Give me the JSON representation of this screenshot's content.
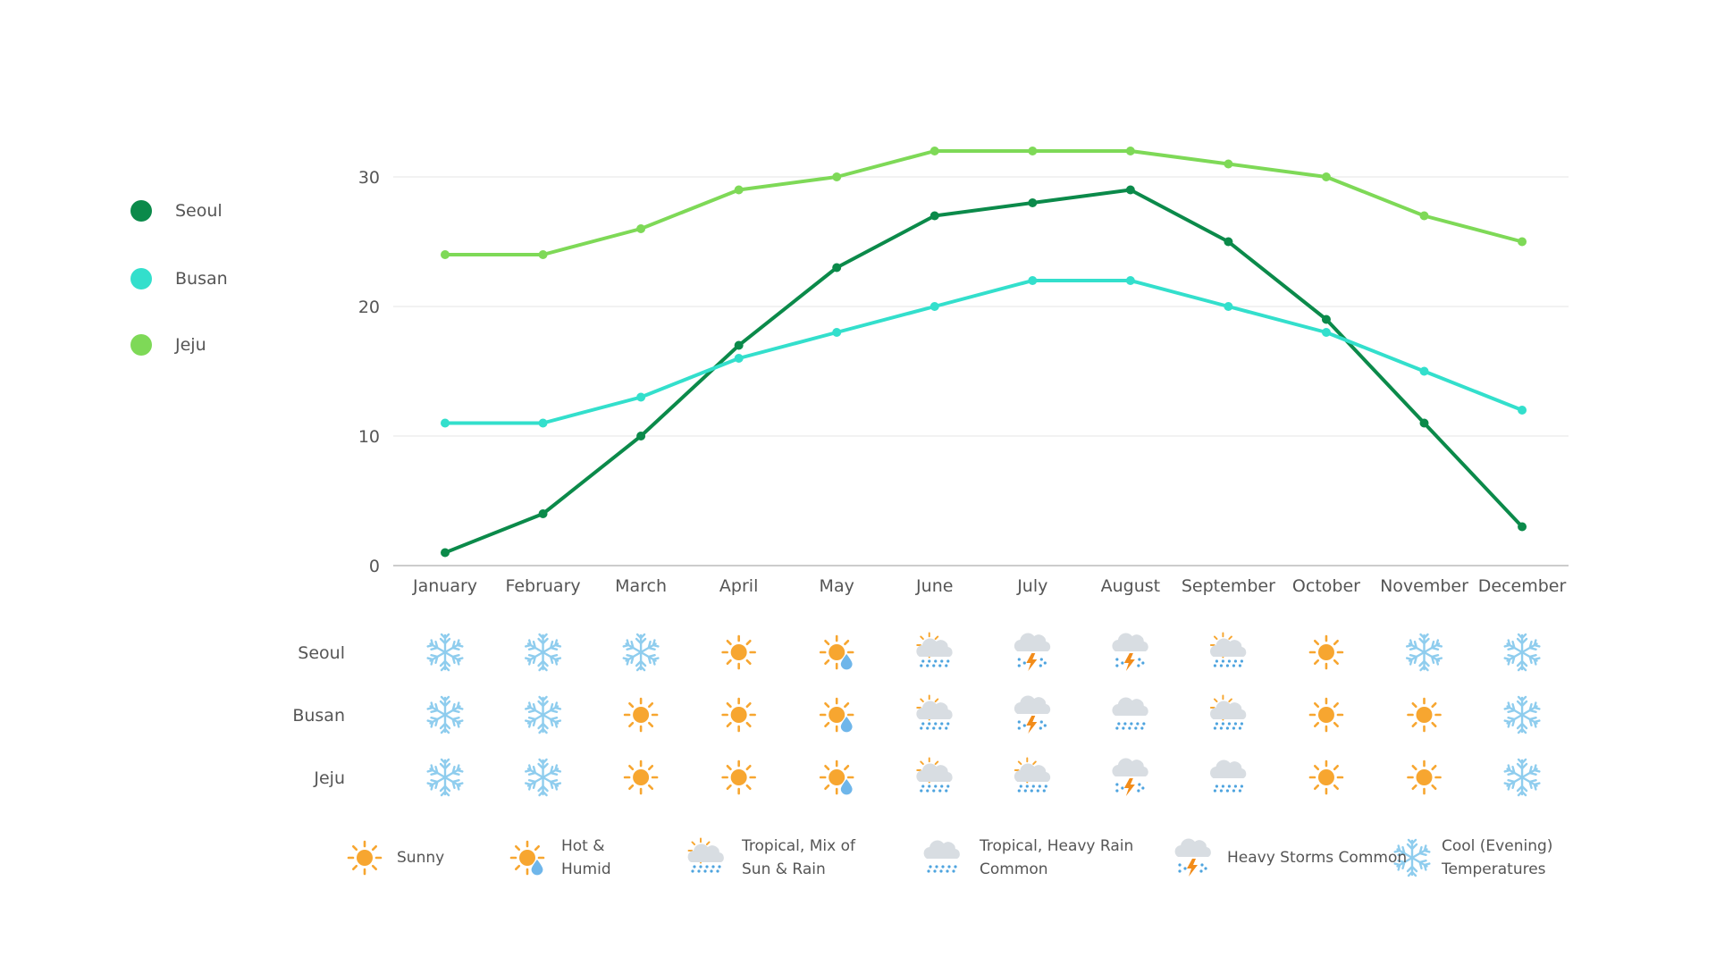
{
  "chart_data": {
    "type": "line",
    "categories": [
      "January",
      "February",
      "March",
      "April",
      "May",
      "June",
      "July",
      "August",
      "September",
      "October",
      "November",
      "December"
    ],
    "series": [
      {
        "name": "Seoul",
        "color": "#0b8a4a",
        "values": [
          1,
          4,
          10,
          17,
          23,
          27,
          28,
          29,
          25,
          19,
          11,
          3
        ]
      },
      {
        "name": "Busan",
        "color": "#33dfcc",
        "values": [
          11,
          11,
          13,
          16,
          18,
          20,
          22,
          22,
          20,
          18,
          15,
          12
        ]
      },
      {
        "name": "Jeju",
        "color": "#7ed957",
        "values": [
          24,
          24,
          26,
          29,
          30,
          32,
          32,
          32,
          31,
          30,
          27,
          25
        ]
      }
    ],
    "ylim": [
      0,
      30
    ],
    "yticks": [
      0,
      10,
      20,
      30
    ],
    "grid": true,
    "legend_position": "left"
  },
  "weather": {
    "rows": [
      {
        "city": "Seoul",
        "icons": [
          "snowflake",
          "snowflake",
          "snowflake",
          "sun",
          "sun-drop",
          "sun-cloud-rain",
          "storm",
          "storm",
          "sun-cloud-rain",
          "sun",
          "snowflake",
          "snowflake"
        ]
      },
      {
        "city": "Busan",
        "icons": [
          "snowflake",
          "snowflake",
          "sun",
          "sun",
          "sun-drop",
          "sun-cloud-rain",
          "storm",
          "cloud-rain",
          "sun-cloud-rain",
          "sun",
          "sun",
          "snowflake"
        ]
      },
      {
        "city": "Jeju",
        "icons": [
          "snowflake",
          "snowflake",
          "sun",
          "sun",
          "sun-drop",
          "sun-cloud-rain",
          "sun-cloud-rain",
          "storm",
          "cloud-rain",
          "sun",
          "sun",
          "snowflake"
        ]
      }
    ],
    "legend": [
      {
        "icon": "sun",
        "line1": "Sunny",
        "line2": ""
      },
      {
        "icon": "sun-drop",
        "line1": "Hot &",
        "line2": "Humid"
      },
      {
        "icon": "sun-cloud-rain",
        "line1": "Tropical, Mix of",
        "line2": "Sun & Rain"
      },
      {
        "icon": "cloud-rain",
        "line1": "Tropical, Heavy  Rain",
        "line2": "Common"
      },
      {
        "icon": "storm",
        "line1": "Heavy Storms Common",
        "line2": ""
      },
      {
        "icon": "snowflake",
        "line1": "Cool (Evening)",
        "line2": "Temperatures"
      }
    ]
  },
  "colors": {
    "sun": "#f7a630",
    "snow": "#8fcdee",
    "cloud": "#d8dde2",
    "rain": "#4ea4df",
    "bolt": "#f28c1a",
    "grid": "#e6e6e6",
    "axis": "#bbbbbb"
  }
}
